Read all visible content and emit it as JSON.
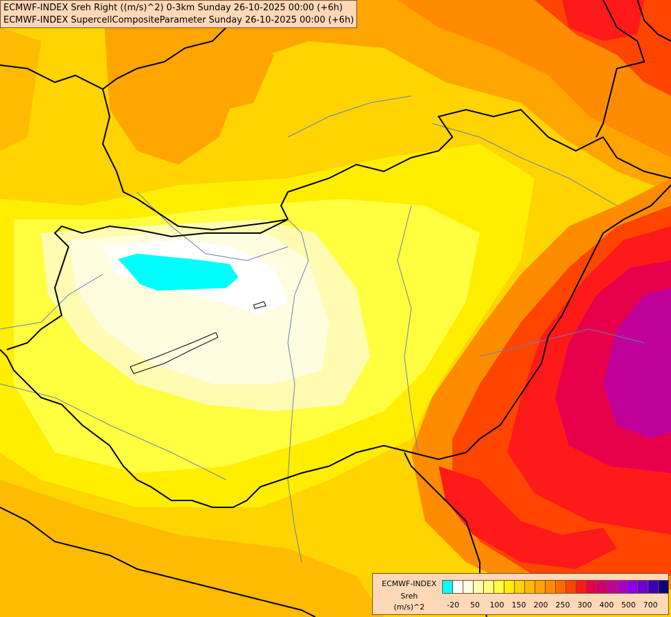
{
  "header": {
    "line1": "ECMWF-INDEX Sreh Right ((m/s)^2) 0-3km Sunday 26-10-2025 00:00 (+6h)",
    "line2": "ECMWF-INDEX SupercellCompositeParameter Sunday 26-10-2025 00:00 (+6h)"
  },
  "legend": {
    "model": "ECMWF-INDEX",
    "variable": "Sreh",
    "unit": "(m/s)^2",
    "colors": [
      "#00ffff",
      "#ffffff",
      "#fffce0",
      "#fffbb0",
      "#ffff80",
      "#ffff40",
      "#ffee00",
      "#ffd400",
      "#ffbb00",
      "#ffa500",
      "#ff8c00",
      "#ff6a00",
      "#ff4500",
      "#ff1a1a",
      "#e6004c",
      "#d0006f",
      "#bf0099",
      "#aa00cc",
      "#8800ee",
      "#6a00d4",
      "#3a00b0",
      "#0a0080"
    ],
    "ticks": [
      "-20",
      "50",
      "100",
      "150",
      "200",
      "250",
      "300",
      "400",
      "500",
      "700"
    ]
  },
  "map": {
    "field_colors": {
      "min": "#00ffff",
      "low1": "#ffffff",
      "low2": "#fffce0",
      "low3": "#fffbb0",
      "mid1": "#ffff40",
      "mid2": "#ffee00",
      "mid3": "#ffd400",
      "hi1": "#ffbb00",
      "hi2": "#ff8c00",
      "hi3": "#ff4500",
      "hi4": "#ff1a1a",
      "hi5": "#e6004c",
      "hi6": "#bf0099"
    },
    "border_color": "#000000",
    "river_color": "#6a7fb0"
  }
}
